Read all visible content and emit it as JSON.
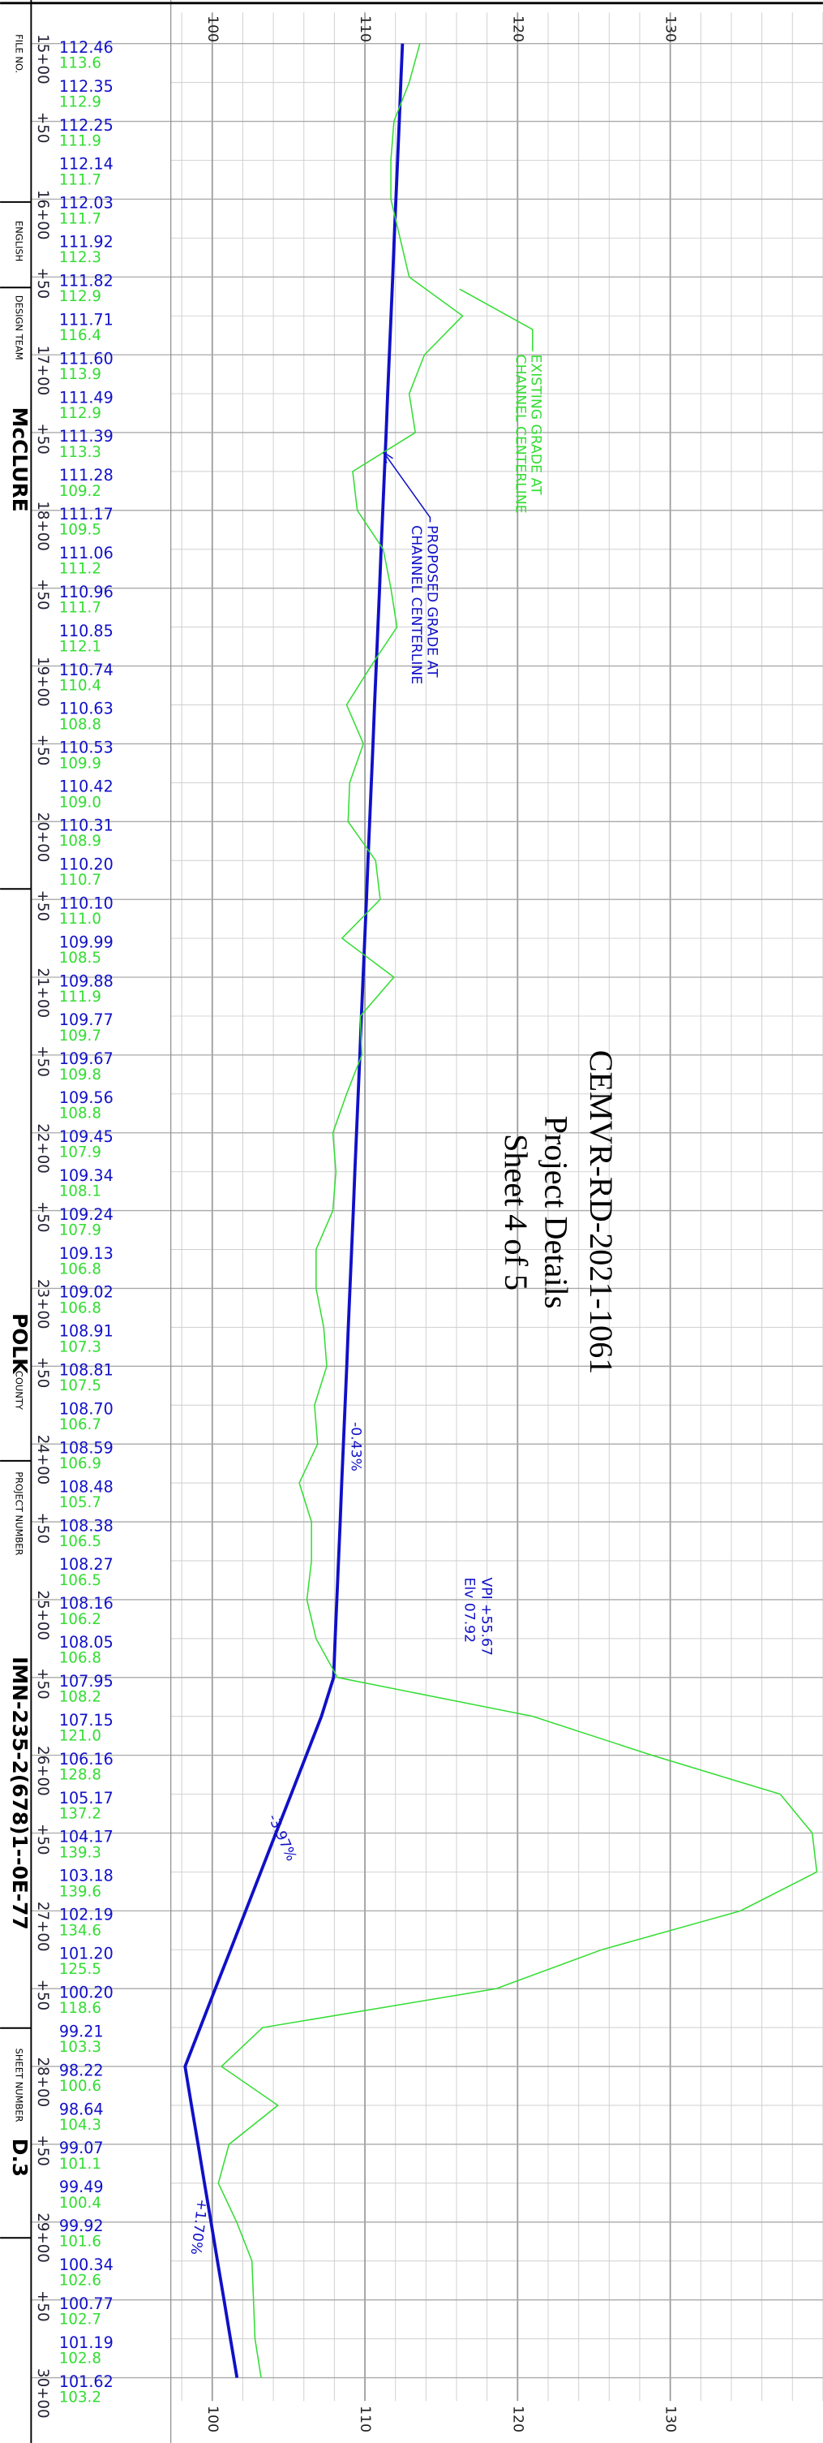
{
  "chart_data": {
    "type": "line",
    "orientation": "rotated",
    "title": "CEMVR-RD-2021-1061",
    "subtitle": "Project Details",
    "sheet": "Sheet 4 of 5",
    "x": [
      1500,
      1525,
      1550,
      1575,
      1600,
      1625,
      1650,
      1675,
      1700,
      1725,
      1750,
      1775,
      1800,
      1825,
      1850,
      1875,
      1900,
      1925,
      1950,
      1975,
      2000,
      2025,
      2050,
      2075,
      2100,
      2125,
      2150,
      2175,
      2200,
      2225,
      2250,
      2275,
      2300,
      2325,
      2350,
      2375,
      2400,
      2425,
      2450,
      2475,
      2500,
      2525,
      2550,
      2575,
      2600,
      2625,
      2650,
      2675,
      2700,
      2725,
      2750,
      2775,
      2800,
      2825,
      2850,
      2875,
      2900,
      2925,
      2950,
      2975,
      3000
    ],
    "xlim": [
      1480,
      3015
    ],
    "xticks": [
      {
        "value": 1500,
        "label": "15+00"
      },
      {
        "value": 1550,
        "label": "+50"
      },
      {
        "value": 1600,
        "label": "16+00"
      },
      {
        "value": 1650,
        "label": "+50"
      },
      {
        "value": 1700,
        "label": "17+00"
      },
      {
        "value": 1750,
        "label": "+50"
      },
      {
        "value": 1800,
        "label": "18+00"
      },
      {
        "value": 1850,
        "label": "+50"
      },
      {
        "value": 1900,
        "label": "19+00"
      },
      {
        "value": 1950,
        "label": "+50"
      },
      {
        "value": 2000,
        "label": "20+00"
      },
      {
        "value": 2050,
        "label": "+50"
      },
      {
        "value": 2100,
        "label": "21+00"
      },
      {
        "value": 2150,
        "label": "+50"
      },
      {
        "value": 2200,
        "label": "22+00"
      },
      {
        "value": 2250,
        "label": "+50"
      },
      {
        "value": 2300,
        "label": "23+00"
      },
      {
        "value": 2350,
        "label": "+50"
      },
      {
        "value": 2400,
        "label": "24+00"
      },
      {
        "value": 2450,
        "label": "+50"
      },
      {
        "value": 2500,
        "label": "25+00"
      },
      {
        "value": 2550,
        "label": "+50"
      },
      {
        "value": 2600,
        "label": "26+00"
      },
      {
        "value": 2650,
        "label": "+50"
      },
      {
        "value": 2700,
        "label": "27+00"
      },
      {
        "value": 2750,
        "label": "+50"
      },
      {
        "value": 2800,
        "label": "28+00"
      },
      {
        "value": 2850,
        "label": "+50"
      },
      {
        "value": 2900,
        "label": "29+00"
      },
      {
        "value": 2950,
        "label": "+50"
      },
      {
        "value": 3000,
        "label": "30+00"
      }
    ],
    "ylim": [
      98,
      140
    ],
    "yticks": [
      100,
      110,
      120,
      130
    ],
    "yminorticks": [
      98,
      102,
      104,
      106,
      108,
      112,
      114,
      116,
      118,
      122,
      124,
      126,
      128,
      132,
      134,
      136,
      138,
      140
    ],
    "grid": true,
    "series": [
      {
        "color": "#1010c8",
        "annotation": [
          "PROPOSED GRADE AT",
          "CHANNEL CENTERLINE"
        ],
        "values": [
          112.46,
          112.35,
          112.25,
          112.14,
          112.03,
          111.92,
          111.82,
          111.71,
          111.6,
          111.49,
          111.39,
          111.28,
          111.17,
          111.06,
          110.96,
          110.85,
          110.74,
          110.63,
          110.53,
          110.42,
          110.31,
          110.2,
          110.1,
          109.99,
          109.88,
          109.77,
          109.67,
          109.56,
          109.45,
          109.34,
          109.24,
          109.13,
          109.02,
          108.91,
          108.81,
          108.7,
          108.59,
          108.48,
          108.38,
          108.27,
          108.16,
          108.05,
          107.95,
          107.15,
          106.16,
          105.17,
          104.17,
          103.18,
          102.19,
          101.2,
          100.2,
          99.21,
          98.22,
          98.64,
          99.07,
          99.49,
          99.92,
          100.34,
          100.77,
          101.19,
          101.62
        ],
        "value_labels": [
          "112.46",
          "112.35",
          "112.25",
          "112.14",
          "112.03",
          "111.92",
          "111.82",
          "111.71",
          "111.60",
          "111.49",
          "111.39",
          "111.28",
          "111.17",
          "111.06",
          "110.96",
          "110.85",
          "110.74",
          "110.63",
          "110.53",
          "110.42",
          "110.31",
          "110.20",
          "110.10",
          "109.99",
          "109.88",
          "109.77",
          "109.67",
          "109.56",
          "109.45",
          "109.34",
          "109.24",
          "109.13",
          "109.02",
          "108.91",
          "108.81",
          "108.70",
          "108.59",
          "108.48",
          "108.38",
          "108.27",
          "108.16",
          "108.05",
          "107.95",
          "107.15",
          "106.16",
          "105.17",
          "104.17",
          "103.18",
          "102.19",
          "101.20",
          "100.20",
          "99.21",
          "98.22",
          "98.64",
          "99.07",
          "99.49",
          "99.92",
          "100.34",
          "100.77",
          "101.19",
          "101.62"
        ]
      },
      {
        "color": "#33dd33",
        "annotation": [
          "EXISTING GRADE AT",
          "CHANNEL CENTERLINE"
        ],
        "values": [
          113.6,
          112.9,
          111.9,
          111.7,
          111.7,
          112.3,
          112.9,
          116.4,
          113.9,
          112.9,
          113.3,
          109.2,
          109.5,
          111.2,
          111.7,
          112.1,
          110.4,
          108.8,
          109.9,
          109.0,
          108.9,
          110.7,
          111.0,
          108.5,
          111.9,
          109.7,
          109.8,
          108.8,
          107.9,
          108.1,
          107.9,
          106.8,
          106.8,
          107.3,
          107.5,
          106.7,
          106.9,
          105.7,
          106.5,
          106.5,
          106.2,
          106.8,
          108.2,
          121.0,
          128.8,
          137.2,
          139.3,
          139.6,
          134.6,
          125.5,
          118.6,
          103.3,
          100.6,
          104.3,
          101.1,
          100.4,
          101.6,
          102.6,
          102.7,
          102.8,
          103.2
        ],
        "value_labels": [
          "113.6",
          "112.9",
          "111.9",
          "111.7",
          "111.7",
          "112.3",
          "112.9",
          "116.4",
          "113.9",
          "112.9",
          "113.3",
          "109.2",
          "109.5",
          "111.2",
          "111.7",
          "112.1",
          "110.4",
          "108.8",
          "109.9",
          "109.0",
          "108.9",
          "110.7",
          "111.0",
          "108.5",
          "111.9",
          "109.7",
          "109.8",
          "108.8",
          "107.9",
          "108.1",
          "107.9",
          "106.8",
          "106.8",
          "107.3",
          "107.5",
          "106.7",
          "106.9",
          "105.7",
          "106.5",
          "106.5",
          "106.2",
          "106.8",
          "108.2",
          "121.0",
          "128.8",
          "137.2",
          "139.3",
          "139.6",
          "134.6",
          "125.5",
          "118.6",
          "103.3",
          "100.6",
          "104.3",
          "101.1",
          "100.4",
          "101.6",
          "102.6",
          "102.7",
          "102.8",
          "103.2"
        ]
      }
    ],
    "annotations": [
      "-0.43%",
      "-3.97%",
      "+1.70%",
      "VPI +55.67",
      "Elv 07.92"
    ]
  },
  "title_block": {
    "file_no_label": "FILE NO.",
    "units": "ENGLISH",
    "design_team_label": "DESIGN TEAM",
    "design_team": "McCLURE",
    "county": "POLK",
    "county_label": "COUNTY",
    "project_number_label": "PROJECT NUMBER",
    "project_number": "IMN-235-2(678)1--0E-77",
    "sheet_number_label": "SHEET NUMBER",
    "sheet_number": "D.3"
  }
}
